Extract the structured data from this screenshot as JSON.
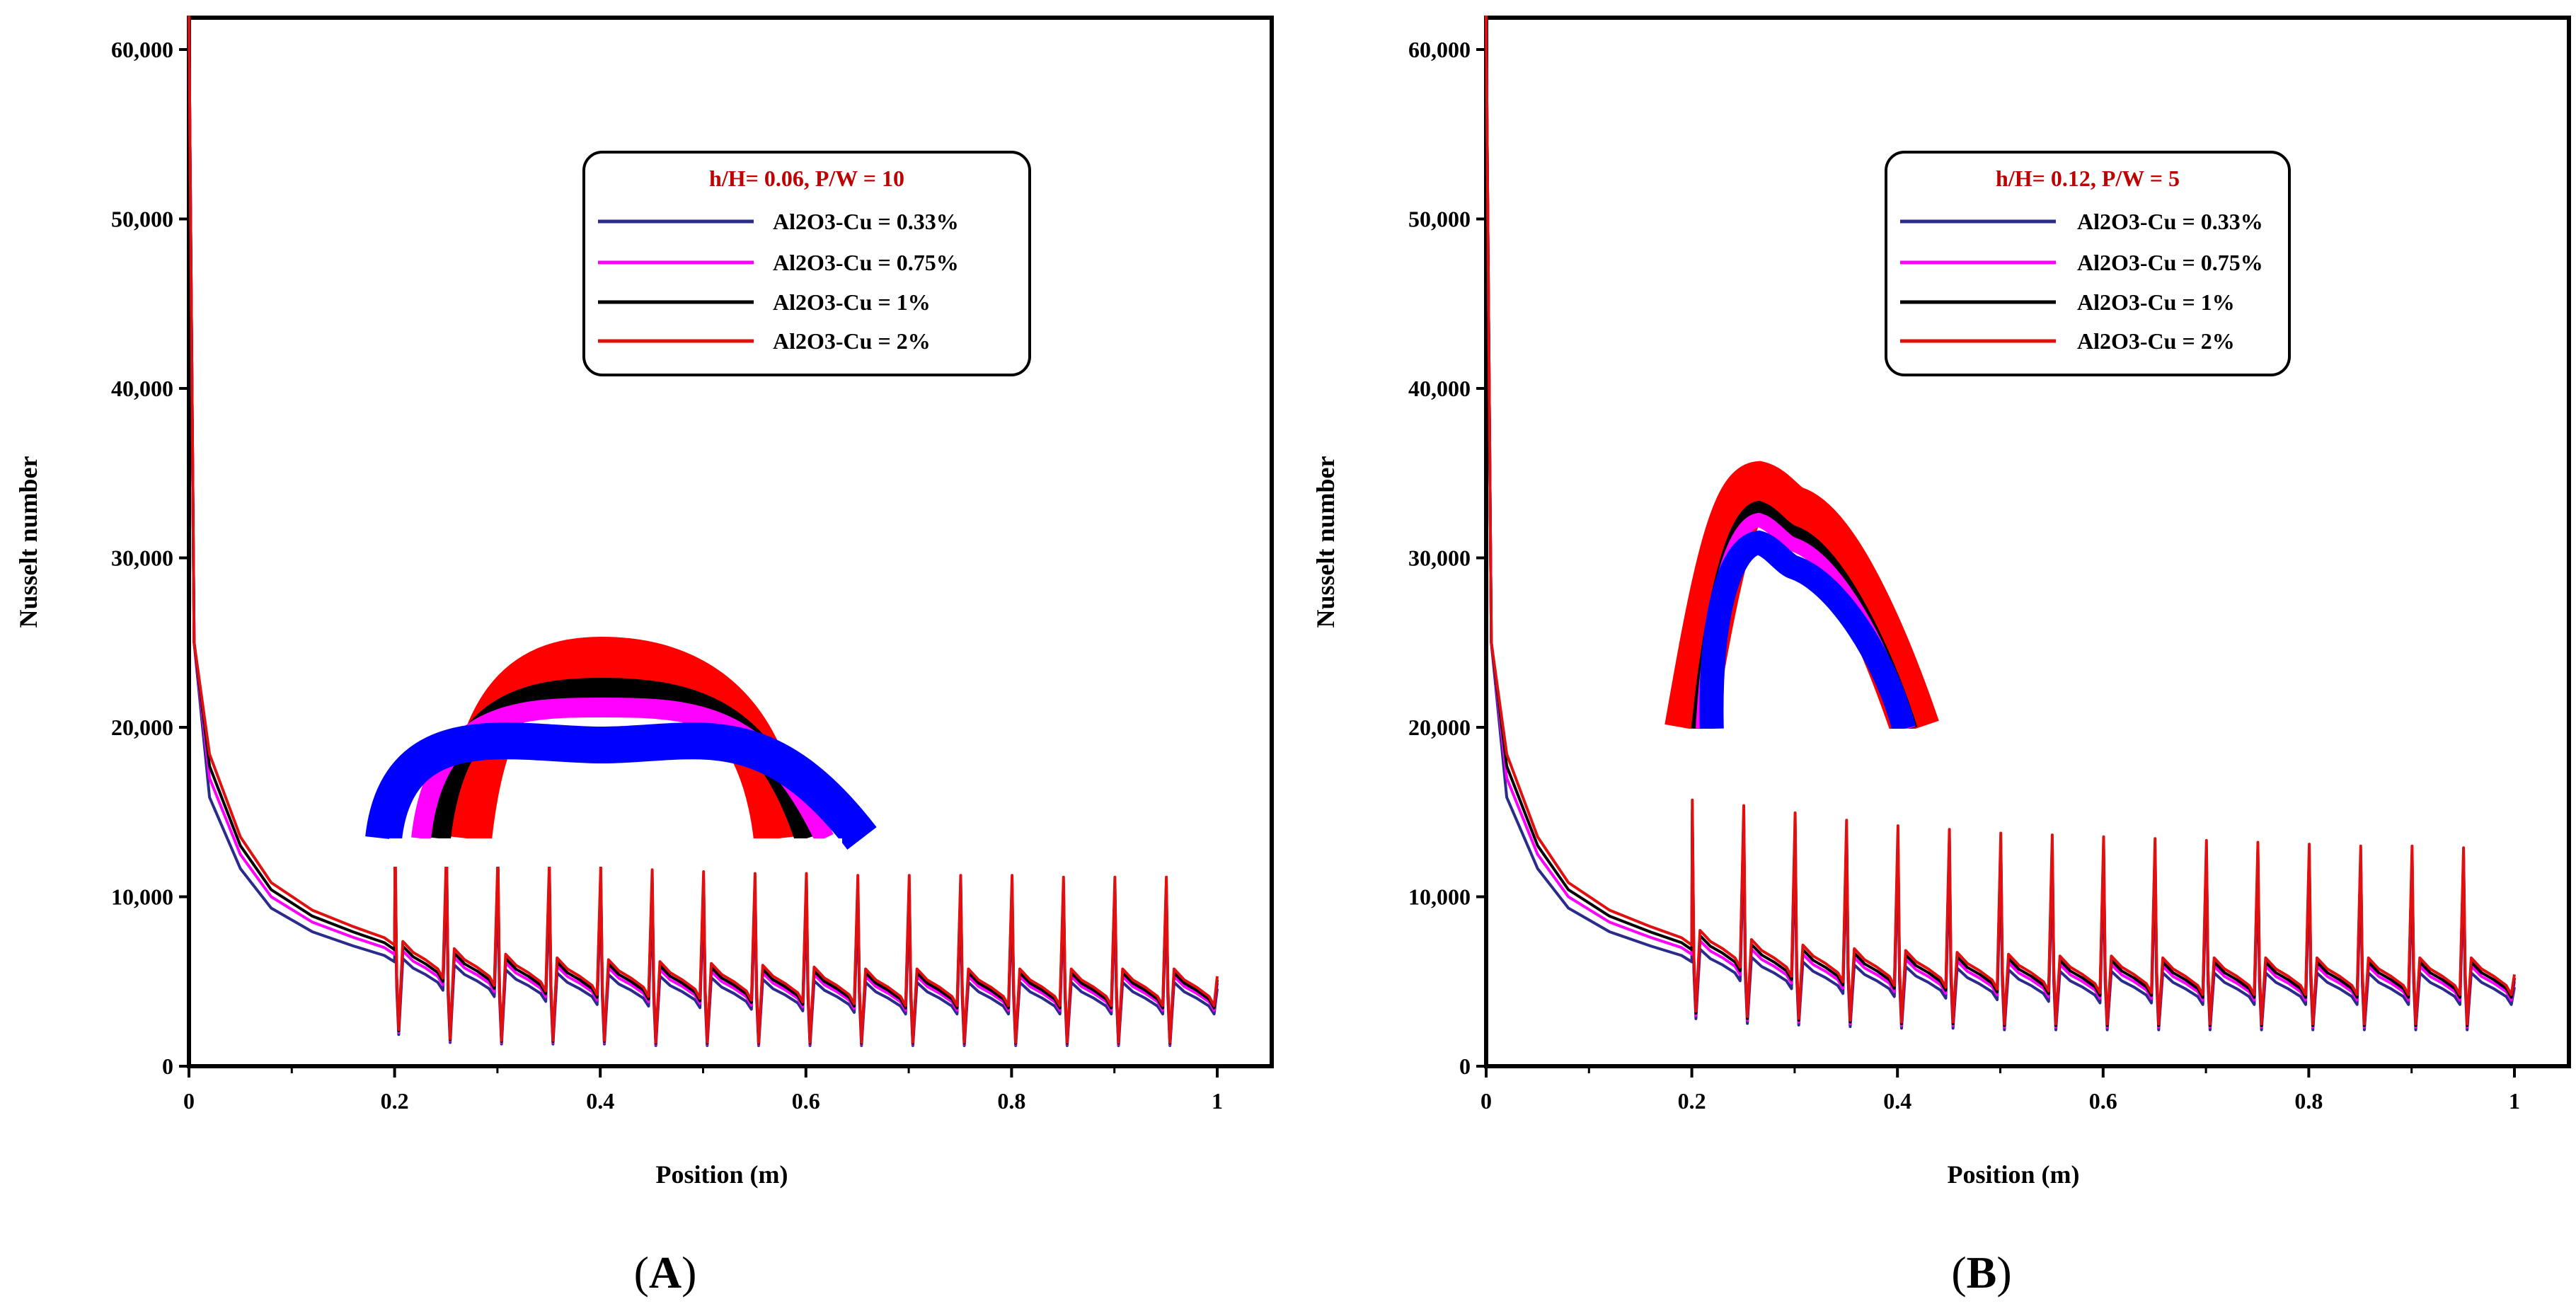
{
  "chart_data": [
    {
      "panel_label": "A",
      "type": "line",
      "xlabel": "Position (m)",
      "ylabel": "Nusselt number",
      "xlim": [
        0,
        1
      ],
      "ylim": [
        0,
        62000
      ],
      "x_ticks": [
        0,
        0.2,
        0.4,
        0.6,
        0.8,
        1
      ],
      "x_tick_labels": [
        "0",
        "0.2",
        "0.4",
        "0.6",
        "0.8",
        "1"
      ],
      "y_ticks": [
        0,
        10000,
        20000,
        30000,
        40000,
        50000,
        60000
      ],
      "y_tick_labels": [
        "0",
        "10,000",
        "20,000",
        "30,000",
        "40,000",
        "50,000",
        "60,000"
      ],
      "legend_title": "h/H= 0.06, P/W = 10",
      "legend_position": "top-right",
      "series": [
        {
          "name": "Al2O3-Cu = 0.33%",
          "color": "#2b2b8c",
          "offset": -400
        },
        {
          "name": "Al2O3-Cu = 0.75%",
          "color": "#ff00ff",
          "offset": 0
        },
        {
          "name": "Al2O3-Cu = 1%",
          "color": "#000000",
          "offset": 250
        },
        {
          "name": "Al2O3-Cu = 2%",
          "color": "#e01010",
          "offset": 500
        }
      ],
      "profile": {
        "entrance": [
          [
            0,
            62000
          ],
          [
            0.005,
            25000
          ],
          [
            0.02,
            17000
          ],
          [
            0.05,
            12500
          ],
          [
            0.08,
            10000
          ],
          [
            0.12,
            8500
          ],
          [
            0.16,
            7600
          ],
          [
            0.19,
            7000
          ],
          [
            0.2,
            6600
          ]
        ],
        "peak_positions": [
          0.2,
          0.25,
          0.3,
          0.35,
          0.4,
          0.45,
          0.5,
          0.55,
          0.6,
          0.65,
          0.7,
          0.75,
          0.8,
          0.85,
          0.9,
          0.95
        ],
        "peak_values": [
          12500,
          12000,
          11500,
          11200,
          10900,
          10700,
          10600,
          10500,
          10500,
          10400,
          10400,
          10400,
          10400,
          10300,
          10300,
          10300
        ],
        "trough_values": [
          2000,
          1500,
          1400,
          1400,
          1400,
          1300,
          1300,
          1300,
          1300,
          1300,
          1300,
          1300,
          1300,
          1300,
          1300,
          1300
        ],
        "plateau_values": [
          6200,
          5800,
          5500,
          5300,
          5200,
          5100,
          5000,
          4900,
          4800,
          4700,
          4700,
          4700,
          4700,
          4700,
          4700,
          4700
        ],
        "end_value": 4900
      },
      "inset": {
        "shape": "dome",
        "series_colors": [
          "#0000ff",
          "#ff00ff",
          "#000000",
          "#ff0000"
        ]
      }
    },
    {
      "panel_label": "B",
      "type": "line",
      "xlabel": "Position (m)",
      "ylabel": "Nusselt number",
      "xlim": [
        0,
        1
      ],
      "ylim": [
        0,
        62000
      ],
      "x_ticks": [
        0,
        0.2,
        0.4,
        0.6,
        0.8,
        1
      ],
      "x_tick_labels": [
        "0",
        "0.2",
        "0.4",
        "0.6",
        "0.8",
        "1"
      ],
      "y_ticks": [
        0,
        10000,
        20000,
        30000,
        40000,
        50000,
        60000
      ],
      "y_tick_labels": [
        "0",
        "10,000",
        "20,000",
        "30,000",
        "40,000",
        "50,000",
        "60,000"
      ],
      "legend_title": "h/H= 0.12, P/W = 5",
      "legend_position": "top-right",
      "series": [
        {
          "name": "Al2O3-Cu = 0.33%",
          "color": "#2b2b8c",
          "offset": -400
        },
        {
          "name": "Al2O3-Cu = 0.75%",
          "color": "#ff00ff",
          "offset": 0
        },
        {
          "name": "Al2O3-Cu = 1%",
          "color": "#000000",
          "offset": 250
        },
        {
          "name": "Al2O3-Cu = 2%",
          "color": "#e01010",
          "offset": 500
        }
      ],
      "profile": {
        "entrance": [
          [
            0,
            62000
          ],
          [
            0.005,
            25000
          ],
          [
            0.02,
            17000
          ],
          [
            0.05,
            12500
          ],
          [
            0.08,
            10000
          ],
          [
            0.12,
            8500
          ],
          [
            0.16,
            7600
          ],
          [
            0.19,
            7000
          ],
          [
            0.2,
            6600
          ]
        ],
        "peak_positions": [
          0.2,
          0.25,
          0.3,
          0.35,
          0.4,
          0.45,
          0.5,
          0.55,
          0.6,
          0.65,
          0.7,
          0.75,
          0.8,
          0.85,
          0.9,
          0.95
        ],
        "peak_values": [
          14500,
          14200,
          13800,
          13400,
          13100,
          12900,
          12700,
          12600,
          12500,
          12400,
          12300,
          12200,
          12100,
          12000,
          12000,
          11900
        ],
        "trough_values": [
          3000,
          2700,
          2600,
          2500,
          2400,
          2400,
          2300,
          2300,
          2300,
          2300,
          2300,
          2300,
          2300,
          2300,
          2300,
          2300
        ],
        "plateau_values": [
          6800,
          6300,
          6000,
          5800,
          5700,
          5600,
          5500,
          5400,
          5400,
          5300,
          5300,
          5300,
          5300,
          5300,
          5300,
          5300
        ],
        "end_value": 5000
      },
      "inset": {
        "shape": "peak",
        "series_colors": [
          "#0000ff",
          "#ff00ff",
          "#000000",
          "#ff0000"
        ]
      }
    }
  ]
}
